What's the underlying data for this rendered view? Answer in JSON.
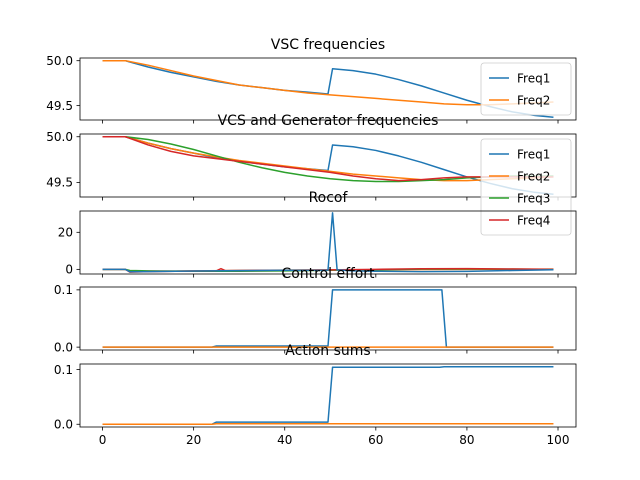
{
  "chart_data": [
    {
      "type": "line",
      "title": "VSC frequencies",
      "xlim": [
        -4.95,
        103.95
      ],
      "ylim": [
        49.34,
        50.03
      ],
      "yticks": [
        49.5,
        50.0
      ],
      "yticklabels": [
        "49.5",
        "50.0"
      ],
      "legend": "top-right",
      "series": [
        {
          "name": "Freq1",
          "color": "#1f77b4",
          "x": [
            0,
            5,
            10,
            15,
            20,
            25,
            30,
            35,
            40,
            45,
            49.5,
            50.5,
            55,
            60,
            65,
            70,
            75,
            80,
            85,
            90,
            95,
            99
          ],
          "y": [
            50.0,
            50.0,
            49.93,
            49.87,
            49.82,
            49.77,
            49.73,
            49.7,
            49.67,
            49.65,
            49.63,
            49.91,
            49.89,
            49.85,
            49.79,
            49.72,
            49.64,
            49.56,
            49.49,
            49.43,
            49.39,
            49.37
          ]
        },
        {
          "name": "Freq2",
          "color": "#ff7f0e",
          "x": [
            0,
            5,
            10,
            15,
            20,
            25,
            30,
            35,
            40,
            45,
            50,
            55,
            60,
            65,
            70,
            75,
            80,
            85,
            90,
            95,
            99
          ],
          "y": [
            50.0,
            50.0,
            49.95,
            49.89,
            49.83,
            49.78,
            49.73,
            49.7,
            49.67,
            49.64,
            49.62,
            49.6,
            49.58,
            49.56,
            49.54,
            49.52,
            49.51,
            49.51,
            49.52,
            49.53,
            49.54
          ]
        }
      ]
    },
    {
      "type": "line",
      "title": "VCS and Generator frequencies",
      "xlim": [
        -4.95,
        103.95
      ],
      "ylim": [
        49.34,
        50.03
      ],
      "yticks": [
        49.5,
        50.0
      ],
      "yticklabels": [
        "49.5",
        "50.0"
      ],
      "legend": "top-right",
      "series": [
        {
          "name": "Freq1",
          "color": "#1f77b4",
          "x": [
            0,
            5,
            10,
            15,
            20,
            25,
            30,
            35,
            40,
            45,
            49.5,
            50.5,
            55,
            60,
            65,
            70,
            75,
            80,
            85,
            90,
            95,
            99
          ],
          "y": [
            50.0,
            50.0,
            49.93,
            49.87,
            49.82,
            49.77,
            49.73,
            49.7,
            49.67,
            49.65,
            49.63,
            49.91,
            49.89,
            49.85,
            49.79,
            49.72,
            49.64,
            49.56,
            49.49,
            49.43,
            49.39,
            49.37
          ]
        },
        {
          "name": "Freq2",
          "color": "#ff7f0e",
          "x": [
            0,
            5,
            10,
            15,
            20,
            25,
            30,
            35,
            40,
            45,
            50,
            55,
            60,
            65,
            70,
            75,
            80,
            85,
            90,
            95,
            99
          ],
          "y": [
            50.0,
            50.0,
            49.93,
            49.87,
            49.82,
            49.78,
            49.74,
            49.71,
            49.68,
            49.65,
            49.62,
            49.59,
            49.57,
            49.55,
            49.53,
            49.52,
            49.52,
            49.53,
            49.54,
            49.55,
            49.56
          ]
        },
        {
          "name": "Freq3",
          "color": "#2ca02c",
          "x": [
            0,
            5,
            10,
            15,
            20,
            25,
            30,
            35,
            40,
            45,
            50,
            55,
            60,
            65,
            70,
            75,
            80,
            85,
            90,
            95,
            99
          ],
          "y": [
            50.0,
            50.0,
            49.97,
            49.92,
            49.86,
            49.79,
            49.72,
            49.66,
            49.61,
            49.57,
            49.54,
            49.52,
            49.51,
            49.51,
            49.52,
            49.53,
            49.55,
            49.56,
            49.57,
            49.57,
            49.57
          ]
        },
        {
          "name": "Freq4",
          "color": "#d62728",
          "x": [
            0,
            5,
            10,
            15,
            20,
            25,
            30,
            35,
            40,
            45,
            50,
            55,
            60,
            65,
            70,
            75,
            80,
            85,
            90,
            95,
            99
          ],
          "y": [
            50.0,
            50.0,
            49.91,
            49.84,
            49.79,
            49.76,
            49.73,
            49.7,
            49.67,
            49.64,
            49.61,
            49.57,
            49.54,
            49.52,
            49.53,
            49.55,
            49.56,
            49.56,
            49.56,
            49.56,
            49.56
          ]
        }
      ]
    },
    {
      "type": "line",
      "title": "Rocof",
      "xlim": [
        -4.95,
        103.95
      ],
      "ylim": [
        -2.5,
        31.5
      ],
      "yticks": [
        0,
        20
      ],
      "yticklabels": [
        "0",
        "20"
      ],
      "series": [
        {
          "color": "#ff7f0e",
          "x": [
            0,
            5,
            6,
            10,
            20,
            30,
            40,
            50,
            60,
            70,
            80,
            90,
            99
          ],
          "y": [
            0,
            0,
            -1.2,
            -1.1,
            -0.8,
            -0.6,
            -0.4,
            -0.3,
            -0.2,
            -0.1,
            0,
            0.1,
            0.1
          ]
        },
        {
          "color": "#2ca02c",
          "x": [
            0,
            5,
            6,
            10,
            20,
            30,
            40,
            50,
            60,
            70,
            80,
            90,
            99
          ],
          "y": [
            0,
            0,
            -0.6,
            -0.8,
            -1.0,
            -1.0,
            -0.8,
            -0.5,
            -0.2,
            0.1,
            0.2,
            0.1,
            0
          ]
        },
        {
          "color": "#d62728",
          "x": [
            0,
            5,
            6,
            10,
            20,
            25,
            26,
            27,
            30,
            40,
            50,
            60,
            70,
            80,
            90,
            99
          ],
          "y": [
            0,
            0,
            -1.5,
            -1.2,
            -0.9,
            -0.8,
            0.4,
            -0.7,
            -0.6,
            -0.5,
            -0.3,
            0,
            0.3,
            0.4,
            0.2,
            0
          ]
        },
        {
          "color": "#1f77b4",
          "x": [
            0,
            5,
            6,
            10,
            20,
            30,
            40,
            49.5,
            50.5,
            51.5,
            55,
            60,
            70,
            80,
            90,
            99
          ],
          "y": [
            0,
            0,
            -1.3,
            -1.2,
            -0.9,
            -0.7,
            -0.5,
            -0.4,
            30.5,
            -0.3,
            -0.8,
            -1.0,
            -1.2,
            -1.1,
            -0.6,
            -0.2
          ]
        }
      ]
    },
    {
      "type": "line",
      "title": "Control effort",
      "xlim": [
        -4.95,
        103.95
      ],
      "ylim": [
        -0.005,
        0.105
      ],
      "yticks": [
        0.0,
        0.1
      ],
      "yticklabels": [
        "0.0",
        "0.1"
      ],
      "series": [
        {
          "color": "#1f77b4",
          "x": [
            0,
            24,
            25,
            48.5,
            49.5,
            50.5,
            73.5,
            74.5,
            75.5,
            99
          ],
          "y": [
            0,
            0,
            0.002,
            0.002,
            0.002,
            0.1,
            0.1,
            0.1,
            0,
            0
          ]
        },
        {
          "color": "#ff7f0e",
          "x": [
            0,
            99
          ],
          "y": [
            0,
            0
          ]
        }
      ]
    },
    {
      "type": "line",
      "title": "Action sums",
      "xlim": [
        -4.95,
        103.95
      ],
      "ylim": [
        -0.005,
        0.11
      ],
      "yticks": [
        0.0,
        0.1
      ],
      "yticklabels": [
        "0.0",
        "0.1"
      ],
      "xticks": [
        0,
        20,
        40,
        60,
        80,
        100
      ],
      "xticklabels": [
        "0",
        "20",
        "40",
        "60",
        "80",
        "100"
      ],
      "series": [
        {
          "color": "#1f77b4",
          "x": [
            0,
            24,
            25,
            49.5,
            50.5,
            74,
            75,
            99
          ],
          "y": [
            0,
            0,
            0.004,
            0.004,
            0.104,
            0.104,
            0.105,
            0.105
          ]
        },
        {
          "color": "#ff7f0e",
          "x": [
            0,
            24,
            25,
            99
          ],
          "y": [
            0,
            0,
            0.001,
            0.001
          ]
        }
      ]
    }
  ]
}
